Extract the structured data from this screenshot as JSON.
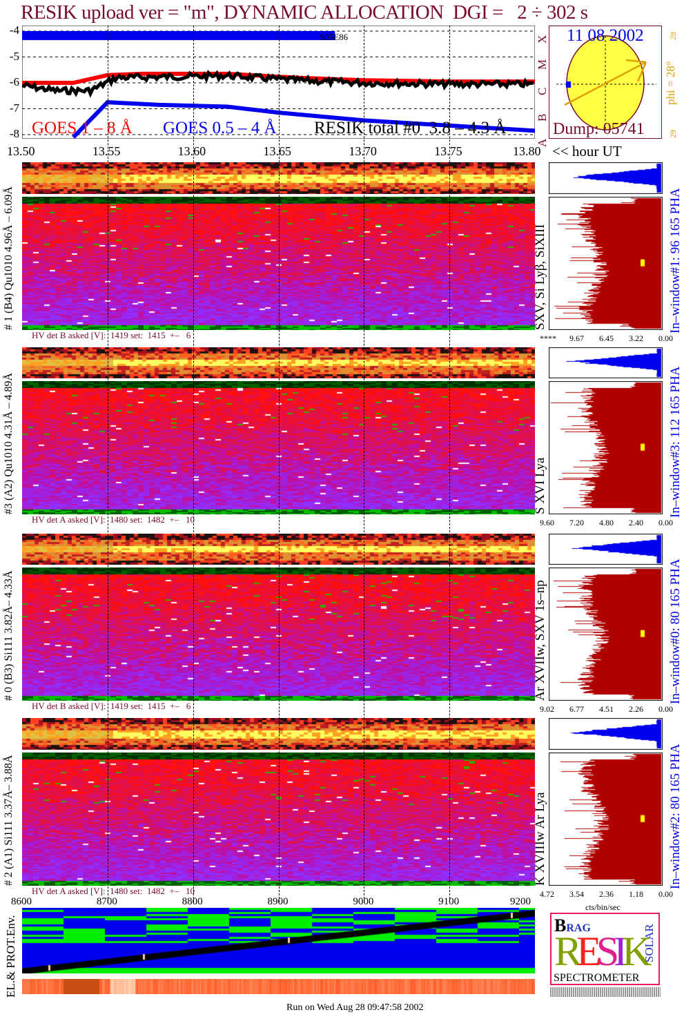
{
  "title": "RESIK upload ver = \"m\", DYNAMIC ALLOCATION  DGI =   2 ÷ 302 s",
  "colors": {
    "maroon": "#7a0a2a",
    "goes_long": "#ff0000",
    "goes_short": "#0000ee",
    "resik": "#000000",
    "sun": "#ffff44",
    "arrow": "#e0a000",
    "pha_top": "#0000ee",
    "pha_main": "#b00000"
  },
  "chart_data": [
    {
      "type": "line",
      "title": "GOES / RESIK light curves",
      "xlabel": "<< hour UT",
      "ylabel": "log flux",
      "xlim": [
        13.5,
        13.8
      ],
      "ylim": [
        -8.1,
        -3.8
      ],
      "x_ticks": [
        "13.50",
        "13.55",
        "13.60",
        "13.65",
        "13.70",
        "13.75",
        "13.80"
      ],
      "x_tick_values": [
        13.5,
        13.55,
        13.6,
        13.65,
        13.7,
        13.75,
        13.8
      ],
      "y_ticks": [
        "-4",
        "-5",
        "-6",
        "-7",
        "-8"
      ],
      "y_tick_values": [
        -4,
        -5,
        -6,
        -7,
        -8
      ],
      "class_letters": [
        "A",
        "B",
        "C",
        "M",
        "X"
      ],
      "series": [
        {
          "name": "GOES 1 – 8 Å",
          "color": "#ff0000",
          "x": [
            13.5,
            13.53,
            13.55,
            13.57,
            13.62,
            13.66,
            13.7,
            13.75,
            13.8
          ],
          "y": [
            -6.0,
            -6.0,
            -5.7,
            -5.65,
            -5.65,
            -5.8,
            -5.9,
            -5.95,
            -5.95
          ]
        },
        {
          "name": "GOES 0.5 – 4 Å",
          "color": "#0000ee",
          "x": [
            13.53,
            13.55,
            13.58,
            13.62,
            13.65,
            13.7,
            13.75,
            13.8
          ],
          "y": [
            -8.1,
            -6.75,
            -6.85,
            -6.92,
            -7.15,
            -7.45,
            -7.65,
            -7.85
          ]
        },
        {
          "name": "RESIK total #0  3.8 – 4.3 Å",
          "color": "#000000",
          "x": [
            13.5,
            13.52,
            13.54,
            13.555,
            13.6,
            13.62,
            13.66,
            13.7,
            13.75,
            13.8
          ],
          "y": [
            -6.1,
            -6.3,
            -6.3,
            -5.8,
            -5.75,
            -5.72,
            -5.9,
            -6.0,
            -6.05,
            -6.05
          ]
        }
      ],
      "annotation_bar": {
        "label": "S05E86",
        "x": [
          13.5,
          13.683
        ],
        "y": [
          -4.0,
          -4.35
        ]
      }
    },
    {
      "type": "heatmap",
      "panels": [
        {
          "label": "# 1 (B4) Qu1010 4.96Å – 6.09Å",
          "lines": "SXV, Si Lyβ, SiXIII",
          "window": "In–window#1:  96 165 PHA",
          "hv": "HV det B asked [V]:  1419 set:  1415  +–   6",
          "ticks": [
            "****",
            "9.67",
            "6.45",
            "3.22",
            "0.00"
          ]
        },
        {
          "label": "#3 (A2) Qu1010  4.31Å – 4.89Å",
          "lines": "S XVI Lya",
          "window": "In–window#3:  112 165 PHA",
          "hv": "HV det A asked [V]:  1480 set:  1482  +–   10",
          "ticks": [
            "9.60",
            "7.20",
            "4.80",
            "2.40",
            "0.00"
          ]
        },
        {
          "label": "# 0 (B3) Si111  3.82Å– 4.33Å",
          "lines": "Ar XVIIw,  SXV 1s–np",
          "window": "In–window#0:  80 165 PHA",
          "hv": "HV det B asked [V]:  1419 set:  1415  +–   6",
          "ticks": [
            "9.02",
            "6.77",
            "4.51",
            "2.26",
            "0.00"
          ]
        },
        {
          "label": "# 2 (A1) Si111  3.37Å– 3.88Å",
          "lines": "K XVIIIw  Ar Lya",
          "window": "In–window#2:  80 165 PHA",
          "hv": "HV det A asked [V]:  1480 set:  1482  +–   10",
          "ticks": [
            "4.72",
            "3.54",
            "2.36",
            "1.18",
            "0.00"
          ]
        }
      ],
      "bottom_x_ticks": [
        "8600",
        "8700",
        "8800",
        "8900",
        "9000",
        "9100",
        "9200"
      ],
      "pha_unit": "cts/bin/sec"
    }
  ],
  "sun": {
    "date": "11 08 2002",
    "phi": "phi =  28°",
    "lat_top": "28",
    "lat_bottom": "29",
    "dump": "Dump: 05741"
  },
  "env_label": "EL.& PROT.Env.",
  "logo": {
    "top": "BRAGG",
    "word": "RESIK",
    "side": "SOLAR",
    "bottom": "SPECTROMETER"
  },
  "footer": "Run on Wed Aug 28 09:47:58 2002"
}
